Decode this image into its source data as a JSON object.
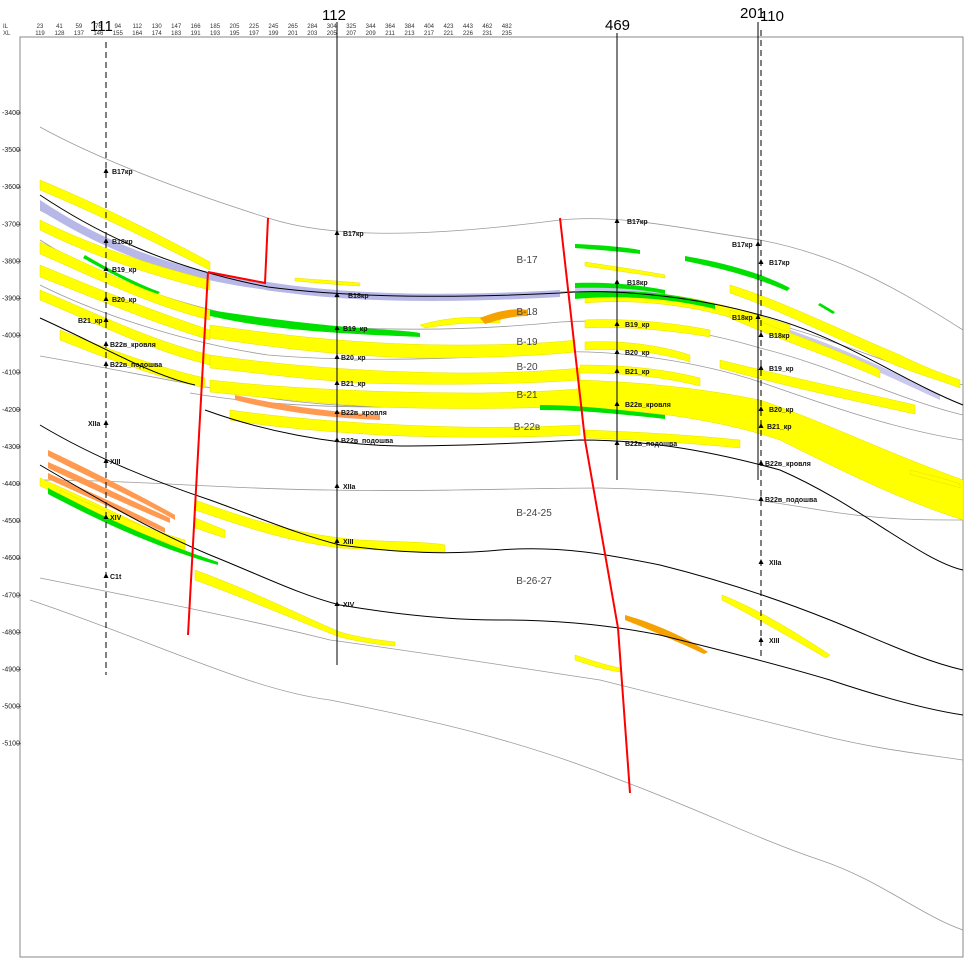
{
  "axis_header": {
    "il_label": "IL",
    "xl_label": "XL"
  },
  "ticks": [
    {
      "il": "23",
      "xl": "119"
    },
    {
      "il": "41",
      "xl": "128"
    },
    {
      "il": "59",
      "xl": "137"
    },
    {
      "il": "76",
      "xl": "146"
    },
    {
      "il": "94",
      "xl": "155"
    },
    {
      "il": "112",
      "xl": "164"
    },
    {
      "il": "130",
      "xl": "174"
    },
    {
      "il": "147",
      "xl": "183"
    },
    {
      "il": "166",
      "xl": "191"
    },
    {
      "il": "185",
      "xl": "193"
    },
    {
      "il": "205",
      "xl": "195"
    },
    {
      "il": "225",
      "xl": "197"
    },
    {
      "il": "245",
      "xl": "199"
    },
    {
      "il": "265",
      "xl": "201"
    },
    {
      "il": "284",
      "xl": "203"
    },
    {
      "il": "304",
      "xl": "205"
    },
    {
      "il": "325",
      "xl": "207"
    },
    {
      "il": "344",
      "xl": "209"
    },
    {
      "il": "364",
      "xl": "211"
    },
    {
      "il": "384",
      "xl": "213"
    },
    {
      "il": "404",
      "xl": "217"
    },
    {
      "il": "423",
      "xl": "221"
    },
    {
      "il": "443",
      "xl": "226"
    },
    {
      "il": "462",
      "xl": "231"
    },
    {
      "il": "482",
      "xl": "235"
    }
  ],
  "depth_labels": [
    "-3400",
    "-3500",
    "-3600",
    "-3700",
    "-3800",
    "-3900",
    "-4000",
    "-4100",
    "-4200",
    "-4300",
    "-4400",
    "-4500",
    "-4600",
    "-4700",
    "-4800",
    "-4900",
    "-5000",
    "-5100"
  ],
  "wells": [
    {
      "name": "111",
      "markers": [
        "B17кр",
        "B18кр",
        "B19_кр",
        "B20_кр",
        "B21_кр",
        "B22в_кровля",
        "B22в_подошва",
        "XIIa",
        "XIII",
        "XIV",
        "C1t"
      ]
    },
    {
      "name": "112",
      "markers": [
        "B17кр",
        "B18кр",
        "B19_кр",
        "B20_кр",
        "B21_кр",
        "B22в_кровля",
        "B22в_подошва",
        "XIIa",
        "XIII",
        "XIV"
      ]
    },
    {
      "name": "469",
      "markers": [
        "B17кр",
        "B18кр",
        "B19_кр",
        "B20_кр",
        "B21_кр",
        "B22в_кровля",
        "B22в_подошва"
      ]
    },
    {
      "name": "201",
      "markers": [
        "B17кр",
        "B18кр"
      ]
    },
    {
      "name": "110",
      "markers": [
        "B17кр",
        "B18кр",
        "B19_кр",
        "B20_кр",
        "B21_кр",
        "B22в_кровля",
        "B22в_подошва",
        "XIIa",
        "XIII"
      ]
    }
  ],
  "zones": [
    "B-17",
    "B-18",
    "B-19",
    "B-20",
    "B-21",
    "B-22в",
    "B-24-25",
    "B-26-27"
  ],
  "colors": {
    "reservoir": "#ffff00",
    "gas": "#00e000",
    "oil": "#ff9a2e",
    "oil_dark": "#f5a200",
    "marker_bed": "#b8b8e8",
    "fault": "#ff0000",
    "horizon": "#000000",
    "horizon_light": "#9a9a9a"
  }
}
